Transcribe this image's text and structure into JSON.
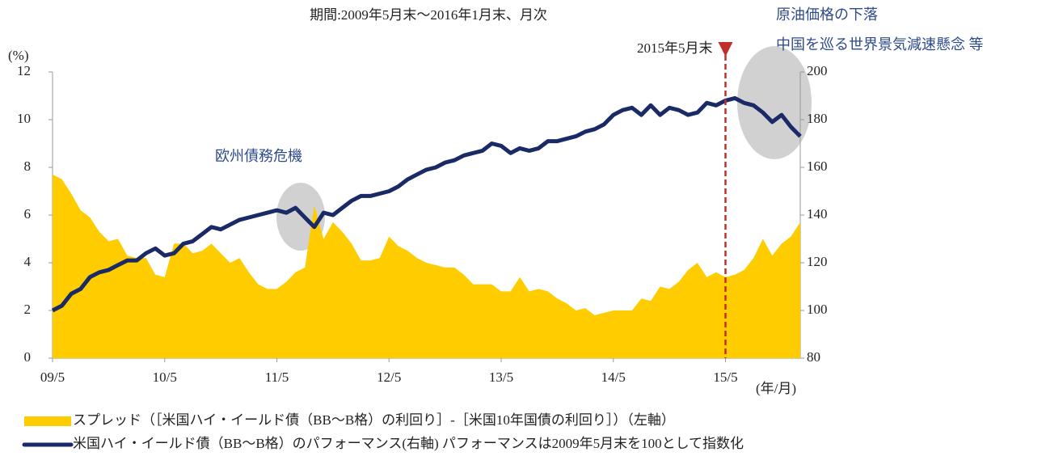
{
  "chart_data": {
    "type": "area_line",
    "title": "期間:2009年5月末～2016年1月末、月次",
    "y_label": "(%)",
    "x_label": "(年/月)",
    "categories": [
      "09/5",
      null,
      null,
      null,
      null,
      null,
      null,
      null,
      null,
      null,
      null,
      null,
      "10/5",
      null,
      null,
      null,
      null,
      null,
      null,
      null,
      null,
      null,
      null,
      null,
      "11/5",
      null,
      null,
      null,
      null,
      null,
      null,
      null,
      null,
      null,
      null,
      null,
      "12/5",
      null,
      null,
      null,
      null,
      null,
      null,
      null,
      null,
      null,
      null,
      null,
      "13/5",
      null,
      null,
      null,
      null,
      null,
      null,
      null,
      null,
      null,
      null,
      null,
      "14/5",
      null,
      null,
      null,
      null,
      null,
      null,
      null,
      null,
      null,
      null,
      null,
      "15/5",
      null,
      null,
      null,
      null,
      null,
      null,
      null,
      null
    ],
    "series": [
      {
        "name": "スプレッド（［米国ハイ・イールド債（BB～B格）の利回り］-［米国10年国債の利回り］）（左軸）",
        "color": "#ffcc00",
        "axis": "y",
        "values": [
          7.7,
          7.5,
          6.9,
          6.2,
          5.9,
          5.3,
          4.9,
          5.0,
          4.3,
          4.2,
          4.2,
          3.5,
          3.4,
          4.8,
          4.8,
          4.4,
          4.5,
          4.8,
          4.4,
          4.0,
          4.2,
          3.6,
          3.1,
          2.9,
          2.9,
          3.2,
          3.6,
          3.8,
          6.4,
          5.0,
          5.7,
          5.3,
          4.8,
          4.1,
          4.1,
          4.2,
          5.1,
          4.7,
          4.5,
          4.2,
          4.0,
          3.9,
          3.8,
          3.8,
          3.5,
          3.1,
          3.1,
          3.1,
          2.8,
          2.8,
          3.4,
          2.8,
          2.9,
          2.8,
          2.5,
          2.3,
          2.0,
          2.1,
          1.8,
          1.9,
          2.0,
          2.0,
          2.0,
          2.5,
          2.4,
          3.0,
          2.9,
          3.2,
          3.7,
          4.0,
          3.4,
          3.6,
          3.4,
          3.5,
          3.7,
          4.2,
          5.0,
          4.3,
          4.8,
          5.1,
          5.7
        ]
      },
      {
        "name": "米国ハイ・イールド債（BB～B格）のパフォーマンス(右軸) パフォーマンスは2009年5月末を100として指数化",
        "color": "#1a2a66",
        "axis": "y2",
        "values": [
          100,
          102,
          107,
          109,
          114,
          116,
          117,
          119,
          121,
          121,
          124,
          126,
          123,
          124,
          128,
          129,
          132,
          135,
          134,
          136,
          138,
          139,
          140,
          141,
          142,
          141,
          143,
          139,
          135,
          141,
          140,
          143,
          146,
          148,
          148,
          149,
          150,
          152,
          155,
          157,
          159,
          160,
          162,
          163,
          165,
          166,
          167,
          170,
          169,
          166,
          168,
          167,
          168,
          171,
          171,
          172,
          173,
          175,
          176,
          178,
          182,
          184,
          185,
          182,
          186,
          182,
          185,
          184,
          182,
          183,
          187,
          186,
          188,
          189,
          187,
          186,
          183,
          179,
          182,
          177,
          173
        ]
      }
    ],
    "ylim": [
      0,
      12
    ],
    "yticks": [
      0,
      2,
      4,
      6,
      8,
      10,
      12
    ],
    "y2lim": [
      80,
      200
    ],
    "y2ticks": [
      80,
      100,
      120,
      140,
      160,
      180,
      200
    ],
    "annotations": [
      "欧州債務危機",
      "原油価格の下落",
      "中国を巡る世界景気減速懸念 等"
    ],
    "highlight": {
      "label": "2015年5月末",
      "x": "15/5",
      "color": "#c0302b"
    }
  }
}
